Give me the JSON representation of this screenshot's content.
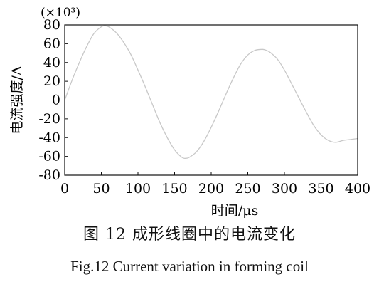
{
  "chart_data": {
    "type": "line",
    "multiplier_label": "(×10³)",
    "xlabel": "时间/μs",
    "ylabel": "电流强度/A",
    "xlim": [
      0,
      400
    ],
    "ylim": [
      -80,
      80
    ],
    "x_ticks": [
      0,
      50,
      100,
      150,
      200,
      250,
      300,
      350,
      400
    ],
    "y_ticks": [
      80,
      60,
      40,
      20,
      0,
      -20,
      -40,
      -60,
      -80
    ],
    "grid": false,
    "series_color": "#c8c8c8",
    "series": [
      {
        "x": [
          0,
          10,
          20,
          30,
          40,
          50,
          55,
          60,
          70,
          80,
          90,
          100,
          110,
          120,
          130,
          140,
          150,
          160,
          165,
          170,
          180,
          190,
          200,
          210,
          220,
          230,
          240,
          250,
          260,
          270,
          275,
          280,
          290,
          300,
          310,
          320,
          330,
          340,
          350,
          360,
          370,
          380,
          390,
          400
        ],
        "values": [
          0,
          21,
          40,
          57,
          71,
          78,
          79,
          78,
          72,
          62,
          49,
          32,
          14,
          -5,
          -24,
          -40,
          -53,
          -61,
          -62,
          -61,
          -55,
          -44,
          -29,
          -12,
          6,
          23,
          38,
          48,
          53,
          54,
          53,
          51,
          44,
          32,
          17,
          2,
          -13,
          -27,
          -37,
          -43,
          -45,
          -43,
          -42,
          -41
        ]
      }
    ]
  },
  "caption_cn": "图 12  成形线圈中的电流变化",
  "caption_en": "Fig.12  Current variation in forming coil"
}
